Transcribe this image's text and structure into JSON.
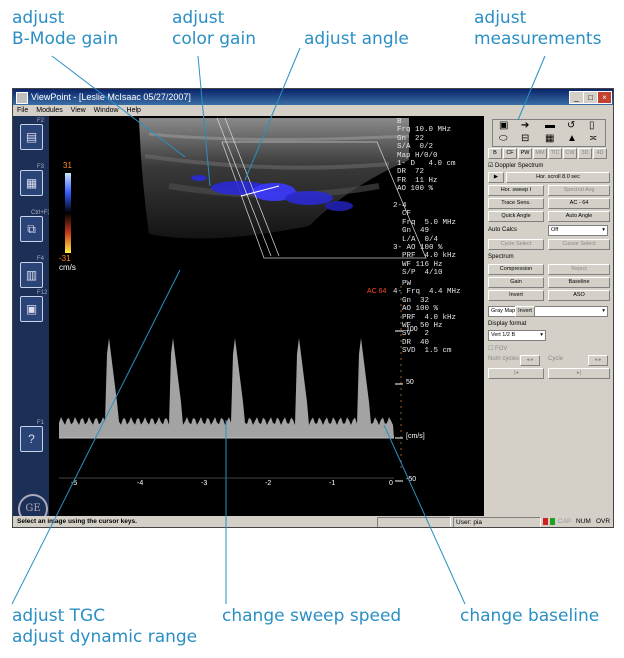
{
  "callouts": {
    "bmode_gain": [
      "adjust",
      "B-Mode gain"
    ],
    "color_gain": [
      "adjust",
      "color gain"
    ],
    "angle": "adjust angle",
    "measurements": [
      "adjust",
      "measurements"
    ],
    "tgc": [
      "adjust TGC",
      "adjust dynamic range"
    ],
    "sweep": "change sweep speed",
    "baseline": "change baseline"
  },
  "window": {
    "title": "ViewPoint - [Leslie McIsaac 05/27/2007]",
    "menu": [
      "File",
      "Modules",
      "View",
      "Window",
      "Help"
    ]
  },
  "left_toolbar": {
    "fkeys": [
      "F2",
      "F3",
      "Ctrl+F3",
      "F4",
      "F12",
      "F1"
    ],
    "logo": "GE"
  },
  "image": {
    "colorbar": {
      "top": "31",
      "bottom": "-31",
      "unit": "cm/s"
    },
    "params_b": "B\nFrq 10.0 MHz\nGn  22\nS/A  0/2\nMap H/0/0\n1- D   4.0 cm\nDR  72\nFR  11 Hz\nAO 100 %",
    "params_cf": "2-4\n  CF\n  Frq  5.0 MHz\n  Gn  49\n  L/A  0/4\n3- AO 100 %\n  PRF  4.0 kHz\n  WF 116 Hz\n  S/P  4/10",
    "params_pw": "  PW\n4- Frq  4.4 MHz\n  Gn  32\n  AO 100 %\n  PRF  4.0 kHz\n  WF  50 Hz\n  SV   2\n  DR  40\n  SVD  1.5 cm",
    "ac_label": "AC 64",
    "vel_ticks": [
      "100",
      "50",
      "[cm/s]",
      "-50"
    ],
    "time_ticks": [
      "-5",
      "-4",
      "-3",
      "-2",
      "-1",
      "0"
    ]
  },
  "right_panel": {
    "tabs": [
      "B",
      "CF",
      "PW",
      "MM",
      "TIC",
      "CW",
      "3D",
      "4D"
    ],
    "doppler_spectrum": "Doppler Spectrum",
    "hor_scroll": "Hor. scroll 8.0 sec",
    "hor_sweep": "Hor. sweep I",
    "spectral_avg": "Spectral Avg",
    "trace_sens": "Trace Sens.",
    "ac64": "AC - 64",
    "quick_angle": "Quick Angle",
    "auto_angle": "Auto Angle",
    "auto_calcs": "Auto Calcs",
    "auto_calcs_value": "Off",
    "cycle_select": "Cycle Select",
    "cursor_select": "Cursor Select",
    "spectrum": "Spectrum",
    "compression": "Compression",
    "reject": "Reject",
    "gain": "Gain",
    "baseline": "Baseline",
    "invert": "Invert",
    "aso": "ASO",
    "gray_map": "Gray Map",
    "invert_small": "Invert",
    "display_format": "Display format",
    "display_format_value": "Vert 1/2 B",
    "fov": "FOV",
    "num_cycles": "Num cycles",
    "cycle": "Cycle"
  },
  "status": {
    "message": "Select an image using the cursor keys.",
    "user": "User: pia",
    "cap": "CAP",
    "num": "NUM",
    "ovr": "OVR"
  }
}
